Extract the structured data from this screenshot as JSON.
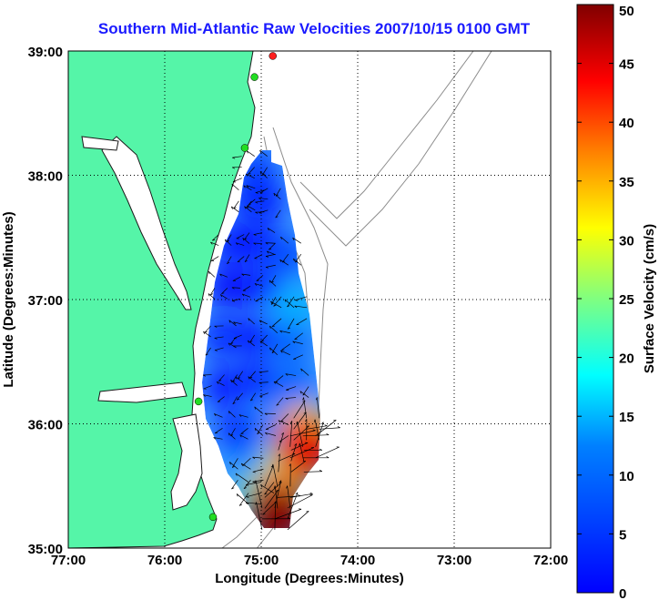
{
  "chart_data": {
    "type": "heatmap",
    "title": "Southern Mid-Atlantic Raw Velocities 2007/10/15 0100 GMT",
    "xlabel": "Longitude (Degrees:Minutes)",
    "ylabel": "Latitude (Degrees:Minutes)",
    "x_ticks": [
      "77:00",
      "76:00",
      "75:00",
      "74:00",
      "73:00",
      "72:00"
    ],
    "y_ticks": [
      "39:00",
      "38:00",
      "37:00",
      "36:00",
      "35:00"
    ],
    "xlim": [
      -77,
      -72
    ],
    "ylim": [
      35,
      39
    ],
    "grid": true,
    "colorbar": {
      "label": "Surface Velocity (cm/s)",
      "ticks": [
        "50",
        "45",
        "40",
        "35",
        "30",
        "25",
        "20",
        "15",
        "10",
        "5",
        "0"
      ],
      "range": [
        0,
        50
      ],
      "colormap": "jet"
    },
    "colors": {
      "land": "#55f5a8",
      "coast": "#1a1a1a",
      "bathymetry": "#8c8c8c",
      "vectors": "#000000",
      "stations_green": "#22dd22",
      "station_red": "#ff2020",
      "title": "#1a1aff"
    },
    "velocity_field": [
      {
        "lon": -75.05,
        "lat": 38.05,
        "v": 9
      },
      {
        "lon": -75.1,
        "lat": 37.8,
        "v": 8
      },
      {
        "lon": -74.95,
        "lat": 37.8,
        "v": 8
      },
      {
        "lon": -75.3,
        "lat": 37.45,
        "v": 7
      },
      {
        "lon": -75.0,
        "lat": 37.45,
        "v": 7
      },
      {
        "lon": -74.7,
        "lat": 37.35,
        "v": 10
      },
      {
        "lon": -75.35,
        "lat": 37.1,
        "v": 6
      },
      {
        "lon": -75.0,
        "lat": 37.1,
        "v": 7
      },
      {
        "lon": -74.65,
        "lat": 36.95,
        "v": 15
      },
      {
        "lon": -75.4,
        "lat": 36.7,
        "v": 8
      },
      {
        "lon": -75.05,
        "lat": 36.7,
        "v": 7
      },
      {
        "lon": -74.7,
        "lat": 36.65,
        "v": 11
      },
      {
        "lon": -75.4,
        "lat": 36.3,
        "v": 7
      },
      {
        "lon": -75.05,
        "lat": 36.35,
        "v": 8
      },
      {
        "lon": -74.65,
        "lat": 36.3,
        "v": 11
      },
      {
        "lon": -75.25,
        "lat": 35.95,
        "v": 8
      },
      {
        "lon": -74.85,
        "lat": 36.0,
        "v": 12
      },
      {
        "lon": -74.55,
        "lat": 35.95,
        "v": 34
      },
      {
        "lon": -75.1,
        "lat": 35.65,
        "v": 12
      },
      {
        "lon": -74.7,
        "lat": 35.7,
        "v": 28
      },
      {
        "lon": -74.55,
        "lat": 35.8,
        "v": 45
      },
      {
        "lon": -75.0,
        "lat": 35.45,
        "v": 22
      },
      {
        "lon": -74.85,
        "lat": 35.4,
        "v": 38
      },
      {
        "lon": -74.85,
        "lat": 35.25,
        "v": 50
      }
    ],
    "stations": [
      {
        "lon": -74.88,
        "lat": 38.96,
        "color": "red"
      },
      {
        "lon": -75.07,
        "lat": 38.79,
        "color": "green"
      },
      {
        "lon": -75.17,
        "lat": 38.22,
        "color": "green"
      },
      {
        "lon": -75.65,
        "lat": 36.18,
        "color": "green"
      },
      {
        "lon": -75.5,
        "lat": 35.25,
        "color": "green"
      }
    ]
  }
}
